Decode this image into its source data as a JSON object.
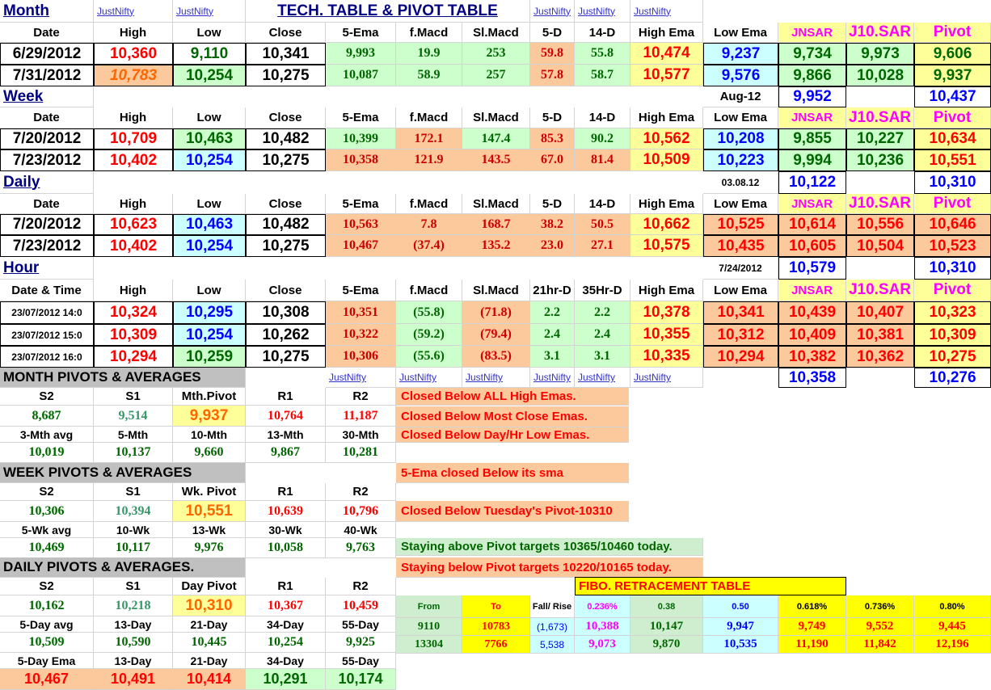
{
  "page_title": "TECH. TABLE  &  PIVOT TABLE",
  "link_text": "JustNifty",
  "colors": {
    "red": "#ff0000",
    "green": "#006600",
    "blue": "#0000ff",
    "black": "#000000",
    "magenta": "#ff00ff",
    "orange": "#ff6600",
    "darkred": "#cc0000",
    "green_fill": "#ccffcc",
    "orange_fill": "#fcc99c",
    "yellow_fill": "#ffff99",
    "cyan_fill": "#ccffff",
    "gray_fill": "#c0c0c0",
    "bright_yellow": "#ffff00",
    "mint_fill": "#cfeecf"
  },
  "sections": {
    "month": "Month",
    "week": "Week",
    "daily": "Daily",
    "hour": "Hour",
    "month_pivots": "MONTH  PIVOTS  &  AVERAGES",
    "week_pivots": "WEEK  PIVOTS  &  AVERAGES",
    "daily_pivots": "DAILY  PIVOTS  &  AVERAGES."
  },
  "headers": {
    "date": "Date",
    "date_time": "Date & Time",
    "high": "High",
    "low": "Low",
    "close": "Close",
    "ema5": "5-Ema",
    "fmacd": "f.Macd",
    "slmacd": "Sl.Macd",
    "d5": "5-D",
    "d14": "14-D",
    "hr21": "21hr-D",
    "hr35": "35Hr-D",
    "high_ema": "High Ema",
    "low_ema": "Low Ema",
    "jnsar": "JNSAR",
    "j10sar": "J10.SAR",
    "pivot": "Pivot"
  },
  "month": {
    "rows": [
      {
        "date": "6/29/2012",
        "high": "10,360",
        "low": "9,110",
        "close": "10,341",
        "ema5": "9,993",
        "fmacd": "19.9",
        "slmacd": "253",
        "d5": "59.8",
        "d14": "55.8",
        "high_ema": "10,474",
        "low_ema": "9,237",
        "jnsar": "9,734",
        "j10sar": "9,973",
        "pivot": "9,606"
      },
      {
        "date": "7/31/2012",
        "high": "10,783",
        "low": "10,254",
        "close": "10,275",
        "ema5": "10,087",
        "fmacd": "58.9",
        "slmacd": "257",
        "d5": "57.8",
        "d14": "58.7",
        "high_ema": "10,577",
        "low_ema": "9,576",
        "jnsar": "9,866",
        "j10sar": "10,028",
        "pivot": "9,937"
      }
    ],
    "next_label": "Aug-12",
    "next_jnsar": "9,952",
    "next_pivot": "10,437"
  },
  "week": {
    "rows": [
      {
        "date": "7/20/2012",
        "high": "10,709",
        "low": "10,463",
        "close": "10,482",
        "ema5": "10,399",
        "fmacd": "172.1",
        "slmacd": "147.4",
        "d5": "85.3",
        "d14": "90.2",
        "high_ema": "10,562",
        "low_ema": "10,208",
        "jnsar": "9,855",
        "j10sar": "10,227",
        "pivot": "10,634"
      },
      {
        "date": "7/23/2012",
        "high": "10,402",
        "low": "10,254",
        "close": "10,275",
        "ema5": "10,358",
        "fmacd": "121.9",
        "slmacd": "143.5",
        "d5": "67.0",
        "d14": "81.4",
        "high_ema": "10,509",
        "low_ema": "10,223",
        "jnsar": "9,994",
        "j10sar": "10,236",
        "pivot": "10,551"
      }
    ],
    "next_label": "03.08.12",
    "next_jnsar": "10,122",
    "next_pivot": "10,310"
  },
  "daily": {
    "rows": [
      {
        "date": "7/20/2012",
        "high": "10,623",
        "low": "10,463",
        "close": "10,482",
        "ema5": "10,563",
        "fmacd": "7.8",
        "slmacd": "168.7",
        "d5": "38.2",
        "d14": "50.5",
        "high_ema": "10,662",
        "low_ema": "10,525",
        "jnsar": "10,614",
        "j10sar": "10,556",
        "pivot": "10,646"
      },
      {
        "date": "7/23/2012",
        "high": "10,402",
        "low": "10,254",
        "close": "10,275",
        "ema5": "10,467",
        "fmacd": "(37.4)",
        "slmacd": "135.2",
        "d5": "23.0",
        "d14": "27.1",
        "high_ema": "10,575",
        "low_ema": "10,435",
        "jnsar": "10,605",
        "j10sar": "10,504",
        "pivot": "10,523"
      }
    ],
    "next_label": "7/24/2012",
    "next_jnsar": "10,579",
    "next_pivot": "10,310"
  },
  "hour": {
    "rows": [
      {
        "date": "23/07/2012 14:0",
        "high": "10,324",
        "low": "10,295",
        "close": "10,308",
        "ema5": "10,351",
        "fmacd": "(55.8)",
        "slmacd": "(71.8)",
        "d5": "2.2",
        "d14": "2.2",
        "high_ema": "10,378",
        "low_ema": "10,341",
        "jnsar": "10,439",
        "j10sar": "10,407",
        "pivot": "10,323"
      },
      {
        "date": "23/07/2012 15:0",
        "high": "10,309",
        "low": "10,254",
        "close": "10,262",
        "ema5": "10,322",
        "fmacd": "(59.2)",
        "slmacd": "(79.4)",
        "d5": "2.4",
        "d14": "2.4",
        "high_ema": "10,355",
        "low_ema": "10,312",
        "jnsar": "10,409",
        "j10sar": "10,381",
        "pivot": "10,309"
      },
      {
        "date": "23/07/2012 16:0",
        "high": "10,294",
        "low": "10,259",
        "close": "10,275",
        "ema5": "10,306",
        "fmacd": "(55.6)",
        "slmacd": "(83.5)",
        "d5": "3.1",
        "d14": "3.1",
        "high_ema": "10,335",
        "low_ema": "10,294",
        "jnsar": "10,382",
        "j10sar": "10,362",
        "pivot": "10,275"
      }
    ],
    "next_jnsar": "10,358",
    "next_pivot": "10,276"
  },
  "pivot_headers": {
    "s2": "S2",
    "s1": "S1",
    "r1": "R1",
    "r2": "R2",
    "mth_pivot": "Mth.Pivot",
    "wk_pivot": "Wk. Pivot",
    "day_pivot": "Day  Pivot"
  },
  "month_pivots": {
    "s2": "8,687",
    "s1": "9,514",
    "pivot": "9,937",
    "r1": "10,764",
    "r2": "11,187",
    "avg_labels": [
      "3-Mth avg",
      "5-Mth",
      "10-Mth",
      "13-Mth",
      "30-Mth"
    ],
    "avg_values": [
      "10,019",
      "10,137",
      "9,660",
      "9,867",
      "10,281"
    ]
  },
  "week_pivots": {
    "s2": "10,306",
    "s1": "10,394",
    "pivot": "10,551",
    "r1": "10,639",
    "r2": "10,796",
    "avg_labels": [
      "5-Wk avg",
      "10-Wk",
      "13-Wk",
      "30-Wk",
      "40-Wk"
    ],
    "avg_values": [
      "10,469",
      "10,117",
      "9,976",
      "10,058",
      "9,763"
    ]
  },
  "daily_pivots": {
    "s2": "10,162",
    "s1": "10,218",
    "pivot": "10,310",
    "r1": "10,367",
    "r2": "10,459",
    "avg_labels": [
      "5-Day avg",
      "13-Day",
      "21-Day",
      "34-Day",
      "55-Day"
    ],
    "avg_values": [
      "10,509",
      "10,590",
      "10,445",
      "10,254",
      "9,925"
    ],
    "ema_labels": [
      "5-Day Ema",
      "13-Day",
      "21-Day",
      "34-Day",
      "55-Day"
    ],
    "ema_values": [
      "10,467",
      "10,491",
      "10,414",
      "10,291",
      "10,174"
    ]
  },
  "notes": {
    "n1": "Closed Below ALL High Emas.",
    "n2": "Closed Below Most Close Emas.",
    "n3": "Closed Below Day/Hr Low Emas.",
    "n4": "5-Ema closed Below its sma",
    "n5": "Closed Below Tuesday's Pivot-10310",
    "n6": "Staying above Pivot targets 10365/10460 today.",
    "n7": "Staying below Pivot targets 10220/10165 today."
  },
  "fibo": {
    "title": "FIBO. RETRACEMENT TABLE",
    "headers": [
      "From",
      "To",
      "Fall/ Rise",
      "0.236%",
      "0.38",
      "0.50",
      "0.618%",
      "0.736%",
      "0.80%"
    ],
    "rows": [
      [
        "9110",
        "10783",
        "(1,673)",
        "10,388",
        "10,147",
        "9,947",
        "9,749",
        "9,552",
        "9,445"
      ],
      [
        "13304",
        "7766",
        "5,538",
        "9,073",
        "9,870",
        "10,535",
        "11,190",
        "11,842",
        "12,196"
      ]
    ]
  }
}
